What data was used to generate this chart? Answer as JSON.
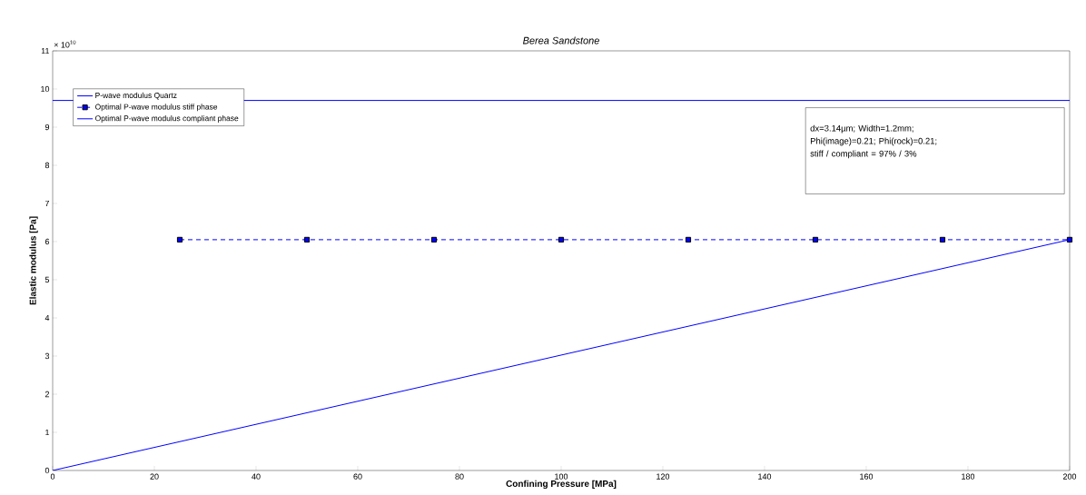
{
  "chart_data": {
    "type": "line",
    "title": "Berea Sandstone",
    "xlabel": "Confining Pressure [MPa]",
    "ylabel": "Elastic modulus [Pa]",
    "annotations": [
      "× 10$^{10}$",
      "dx=3.14µm; Width=1.2mm;",
      "Phi(image)=0.21; Phi(rock)=0.21;",
      "stiff / compliant = 97% / 3%"
    ],
    "xlim": [
      0,
      200
    ],
    "xticks": [
      0,
      20,
      40,
      60,
      80,
      100,
      120,
      140,
      160,
      180,
      200
    ],
    "ylim": [
      0,
      11
    ],
    "yticks": [
      0,
      1,
      2,
      3,
      4,
      5,
      6,
      7,
      8,
      9,
      10,
      11
    ],
    "grid": false,
    "legend": "top left",
    "series": [
      {
        "name": "P-wave modulus Quartz",
        "color": "#0000ff",
        "x": [
          0,
          200
        ],
        "values": [
          9.7,
          9.7
        ],
        "marker": "none",
        "line_style": "solid"
      },
      {
        "name": "Optimal P-wave modulus stiff phase",
        "color": "#0000ff",
        "x": [
          25,
          50,
          75,
          100,
          125,
          150,
          175,
          200
        ],
        "values": [
          6.05,
          6.05,
          6.05,
          6.05,
          6.05,
          6.05,
          6.05,
          6.05
        ],
        "marker": "square",
        "line_style": "dashed"
      },
      {
        "name": "Optimal P-wave modulus compliant phase",
        "color": "#0000ff",
        "x": [
          0,
          200
        ],
        "values": [
          0,
          6.05
        ],
        "marker": "none",
        "line_style": "solid"
      }
    ]
  }
}
